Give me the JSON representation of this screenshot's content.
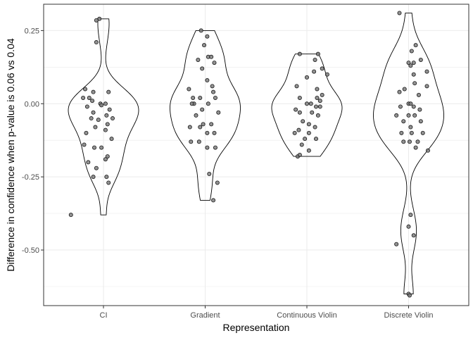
{
  "chart_data": {
    "type": "violin",
    "title": "",
    "xlabel": "Representation",
    "ylabel": "Difference in confidence when p-value is 0.06 vs 0.04",
    "ylim": [
      -0.69,
      0.34
    ],
    "yticks": [
      0.25,
      0.0,
      -0.25,
      -0.5
    ],
    "ytick_labels": [
      "0.25",
      "0.00",
      "-0.25",
      "-0.50"
    ],
    "grid": true,
    "legend": "none",
    "colors": {
      "point_fill": "#7f7f7f",
      "point_stroke": "#1a1a1a",
      "violin_stroke": "#000000",
      "grid": "#ebebeb",
      "panel_border": "#333333"
    },
    "categories": [
      "CI",
      "Gradient",
      "Continuous Violin",
      "Discrete Violin"
    ],
    "groups": [
      {
        "name": "CI",
        "range": [
          -0.38,
          0.29
        ],
        "points": [
          {
            "x": -0.04,
            "y": 0.29
          },
          {
            "x": -0.07,
            "y": 0.285
          },
          {
            "x": -0.07,
            "y": 0.21
          },
          {
            "x": -0.18,
            "y": 0.05
          },
          {
            "x": -0.1,
            "y": 0.04
          },
          {
            "x": 0.05,
            "y": 0.04
          },
          {
            "x": -0.2,
            "y": 0.02
          },
          {
            "x": -0.14,
            "y": 0.02
          },
          {
            "x": -0.11,
            "y": 0.01
          },
          {
            "x": -0.03,
            "y": 0.0
          },
          {
            "x": 0.02,
            "y": 0.0
          },
          {
            "x": -0.02,
            "y": -0.005
          },
          {
            "x": -0.16,
            "y": -0.01
          },
          {
            "x": 0.06,
            "y": -0.02
          },
          {
            "x": -0.1,
            "y": -0.03
          },
          {
            "x": 0.03,
            "y": -0.04
          },
          {
            "x": -0.12,
            "y": -0.05
          },
          {
            "x": 0.09,
            "y": -0.05
          },
          {
            "x": -0.05,
            "y": -0.055
          },
          {
            "x": 0.04,
            "y": -0.07
          },
          {
            "x": -0.08,
            "y": -0.08
          },
          {
            "x": 0.02,
            "y": -0.09
          },
          {
            "x": -0.17,
            "y": -0.1
          },
          {
            "x": 0.08,
            "y": -0.12
          },
          {
            "x": -0.19,
            "y": -0.14
          },
          {
            "x": -0.02,
            "y": -0.15
          },
          {
            "x": -0.09,
            "y": -0.15
          },
          {
            "x": 0.04,
            "y": -0.18
          },
          {
            "x": 0.02,
            "y": -0.19
          },
          {
            "x": -0.15,
            "y": -0.2
          },
          {
            "x": -0.07,
            "y": -0.22
          },
          {
            "x": 0.03,
            "y": -0.25
          },
          {
            "x": -0.1,
            "y": -0.25
          },
          {
            "x": 0.05,
            "y": -0.27
          },
          {
            "x": -0.32,
            "y": -0.38
          }
        ]
      },
      {
        "name": "Gradient",
        "range": [
          -0.33,
          0.25
        ],
        "points": [
          {
            "x": -0.04,
            "y": 0.25
          },
          {
            "x": 0.02,
            "y": 0.23
          },
          {
            "x": -0.01,
            "y": 0.2
          },
          {
            "x": 0.03,
            "y": 0.16
          },
          {
            "x": 0.06,
            "y": 0.16
          },
          {
            "x": -0.07,
            "y": 0.15
          },
          {
            "x": 0.09,
            "y": 0.14
          },
          {
            "x": -0.03,
            "y": 0.12
          },
          {
            "x": 0.02,
            "y": 0.08
          },
          {
            "x": 0.07,
            "y": 0.06
          },
          {
            "x": -0.16,
            "y": 0.05
          },
          {
            "x": 0.08,
            "y": 0.04
          },
          {
            "x": -0.12,
            "y": 0.02
          },
          {
            "x": -0.05,
            "y": 0.02
          },
          {
            "x": 0.1,
            "y": 0.02
          },
          {
            "x": -0.11,
            "y": 0.0
          },
          {
            "x": -0.13,
            "y": 0.0
          },
          {
            "x": 0.03,
            "y": 0.0
          },
          {
            "x": -0.03,
            "y": -0.02
          },
          {
            "x": 0.13,
            "y": -0.03
          },
          {
            "x": -0.09,
            "y": -0.04
          },
          {
            "x": -0.02,
            "y": -0.07
          },
          {
            "x": 0.06,
            "y": -0.07
          },
          {
            "x": -0.15,
            "y": -0.08
          },
          {
            "x": -0.05,
            "y": -0.08
          },
          {
            "x": 0.02,
            "y": -0.1
          },
          {
            "x": 0.09,
            "y": -0.1
          },
          {
            "x": -0.14,
            "y": -0.13
          },
          {
            "x": -0.06,
            "y": -0.13
          },
          {
            "x": 0.02,
            "y": -0.15
          },
          {
            "x": 0.1,
            "y": -0.15
          },
          {
            "x": 0.04,
            "y": -0.24
          },
          {
            "x": 0.12,
            "y": -0.27
          },
          {
            "x": 0.08,
            "y": -0.33
          }
        ]
      },
      {
        "name": "Continuous Violin",
        "range": [
          -0.18,
          0.17
        ],
        "points": [
          {
            "x": -0.07,
            "y": 0.17
          },
          {
            "x": 0.11,
            "y": 0.17
          },
          {
            "x": 0.08,
            "y": 0.15
          },
          {
            "x": 0.15,
            "y": 0.12
          },
          {
            "x": 0.07,
            "y": 0.11
          },
          {
            "x": 0.2,
            "y": 0.1
          },
          {
            "x": 0.0,
            "y": 0.09
          },
          {
            "x": -0.1,
            "y": 0.06
          },
          {
            "x": 0.1,
            "y": 0.05
          },
          {
            "x": 0.15,
            "y": 0.03
          },
          {
            "x": 0.1,
            "y": 0.02
          },
          {
            "x": -0.07,
            "y": 0.02
          },
          {
            "x": 0.13,
            "y": 0.01
          },
          {
            "x": 0.0,
            "y": 0.0
          },
          {
            "x": 0.04,
            "y": 0.0
          },
          {
            "x": 0.09,
            "y": -0.01
          },
          {
            "x": 0.13,
            "y": -0.01
          },
          {
            "x": -0.11,
            "y": -0.02
          },
          {
            "x": 0.05,
            "y": -0.03
          },
          {
            "x": -0.07,
            "y": -0.03
          },
          {
            "x": 0.11,
            "y": -0.04
          },
          {
            "x": -0.04,
            "y": -0.06
          },
          {
            "x": 0.02,
            "y": -0.07
          },
          {
            "x": 0.08,
            "y": -0.08
          },
          {
            "x": -0.08,
            "y": -0.09
          },
          {
            "x": 0.02,
            "y": -0.1
          },
          {
            "x": -0.12,
            "y": -0.1
          },
          {
            "x": -0.02,
            "y": -0.12
          },
          {
            "x": 0.09,
            "y": -0.12
          },
          {
            "x": -0.05,
            "y": -0.14
          },
          {
            "x": 0.02,
            "y": -0.16
          },
          {
            "x": -0.09,
            "y": -0.18
          },
          {
            "x": -0.07,
            "y": -0.175
          }
        ]
      },
      {
        "name": "Discrete Violin",
        "range": [
          -0.65,
          0.31
        ],
        "points": [
          {
            "x": -0.09,
            "y": 0.31
          },
          {
            "x": 0.07,
            "y": 0.2
          },
          {
            "x": 0.03,
            "y": 0.18
          },
          {
            "x": 0.12,
            "y": 0.15
          },
          {
            "x": 0.0,
            "y": 0.14
          },
          {
            "x": 0.05,
            "y": 0.14
          },
          {
            "x": 0.02,
            "y": 0.13
          },
          {
            "x": 0.05,
            "y": 0.1
          },
          {
            "x": 0.18,
            "y": 0.11
          },
          {
            "x": 0.06,
            "y": 0.07
          },
          {
            "x": -0.04,
            "y": 0.05
          },
          {
            "x": 0.18,
            "y": 0.06
          },
          {
            "x": -0.09,
            "y": 0.04
          },
          {
            "x": 0.1,
            "y": 0.03
          },
          {
            "x": 0.0,
            "y": 0.0
          },
          {
            "x": 0.02,
            "y": 0.0
          },
          {
            "x": 0.05,
            "y": -0.01
          },
          {
            "x": -0.08,
            "y": -0.01
          },
          {
            "x": 0.11,
            "y": -0.02
          },
          {
            "x": -0.12,
            "y": -0.04
          },
          {
            "x": 0.0,
            "y": -0.04
          },
          {
            "x": 0.06,
            "y": -0.04
          },
          {
            "x": -0.05,
            "y": -0.06
          },
          {
            "x": 0.12,
            "y": -0.06
          },
          {
            "x": 0.02,
            "y": -0.08
          },
          {
            "x": -0.07,
            "y": -0.1
          },
          {
            "x": 0.03,
            "y": -0.1
          },
          {
            "x": 0.14,
            "y": -0.1
          },
          {
            "x": -0.05,
            "y": -0.13
          },
          {
            "x": 0.01,
            "y": -0.13
          },
          {
            "x": 0.09,
            "y": -0.13
          },
          {
            "x": 0.07,
            "y": -0.15
          },
          {
            "x": 0.19,
            "y": -0.16
          },
          {
            "x": 0.02,
            "y": -0.38
          },
          {
            "x": 0.0,
            "y": -0.42
          },
          {
            "x": 0.05,
            "y": -0.45
          },
          {
            "x": -0.12,
            "y": -0.48
          },
          {
            "x": 0.0,
            "y": -0.65
          },
          {
            "x": 0.01,
            "y": -0.655
          }
        ]
      }
    ]
  }
}
